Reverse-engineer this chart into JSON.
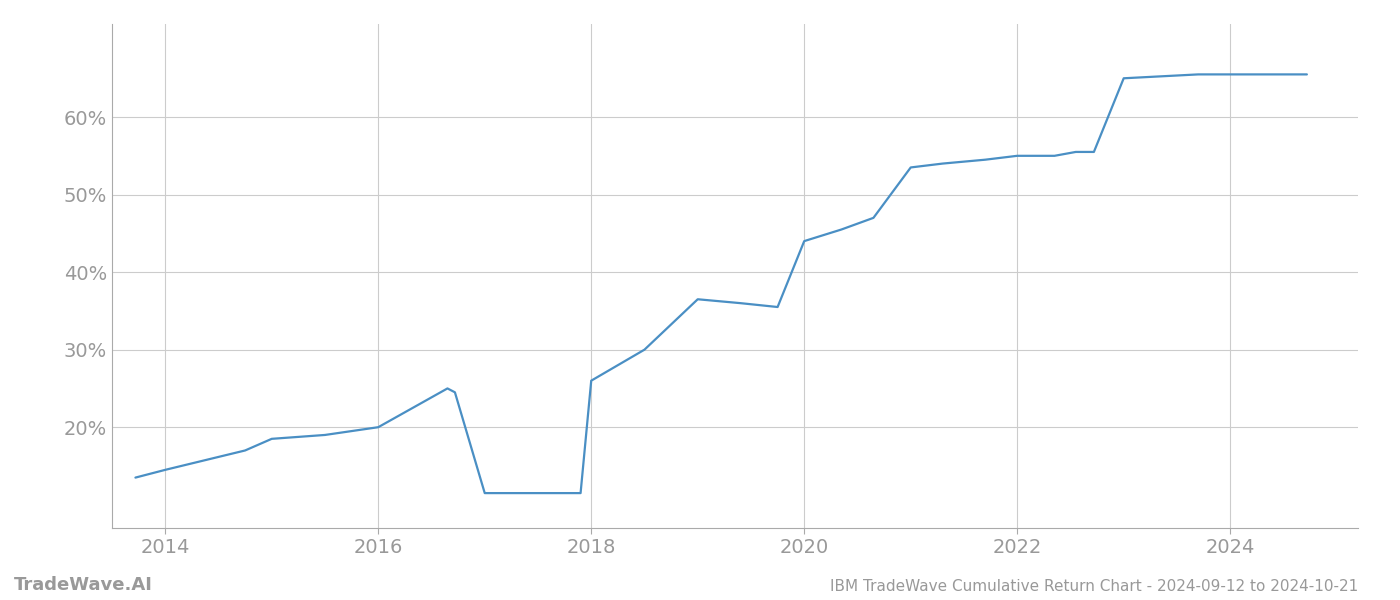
{
  "title": "IBM TradeWave Cumulative Return Chart - 2024-09-12 to 2024-10-21",
  "watermark": "TradeWave.AI",
  "line_color": "#4a8fc4",
  "background_color": "#ffffff",
  "grid_color": "#cccccc",
  "x_values": [
    2013.72,
    2014.0,
    2014.75,
    2015.0,
    2015.5,
    2015.75,
    2016.0,
    2016.65,
    2016.72,
    2017.0,
    2017.72,
    2017.9,
    2018.0,
    2018.5,
    2019.0,
    2019.4,
    2019.75,
    2020.0,
    2020.35,
    2020.65,
    2021.0,
    2021.3,
    2021.7,
    2022.0,
    2022.35,
    2022.55,
    2022.72,
    2023.0,
    2023.7,
    2024.0,
    2024.72
  ],
  "y_values": [
    13.5,
    14.5,
    17.0,
    18.5,
    19.0,
    19.5,
    20.0,
    25.0,
    24.5,
    11.5,
    11.5,
    11.5,
    26.0,
    30.0,
    36.5,
    36.0,
    35.5,
    44.0,
    45.5,
    47.0,
    53.5,
    54.0,
    54.5,
    55.0,
    55.0,
    55.5,
    55.5,
    65.0,
    65.5,
    65.5,
    65.5
  ],
  "xlim": [
    2013.5,
    2025.2
  ],
  "ylim": [
    7,
    72
  ],
  "xticks": [
    2014,
    2016,
    2018,
    2020,
    2022,
    2024
  ],
  "yticks": [
    20,
    30,
    40,
    50,
    60
  ],
  "ytick_labels": [
    "20%",
    "30%",
    "40%",
    "50%",
    "60%"
  ],
  "line_width": 1.6,
  "title_fontsize": 11,
  "tick_fontsize": 14,
  "watermark_fontsize": 13,
  "tick_color": "#999999",
  "spine_color": "#aaaaaa"
}
